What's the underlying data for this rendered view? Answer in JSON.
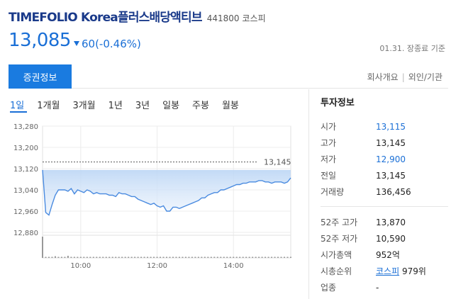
{
  "header": {
    "title": "TIMEFOLIO Korea플러스배당액티브",
    "code": "441800",
    "market": "코스피"
  },
  "quote": {
    "price": "13,085",
    "change": "60(-0.46%)",
    "status": "01.31. 장종료 기준"
  },
  "tabs": {
    "active": "증권정보",
    "links": [
      "회사개요",
      "외인/기관"
    ]
  },
  "periods": [
    "1일",
    "1개월",
    "3개월",
    "1년",
    "3년",
    "일봉",
    "주봉",
    "월봉"
  ],
  "chart_data": {
    "type": "area",
    "y_ticks": [
      "13,280",
      "13,200",
      "13,120",
      "13,040",
      "12,960",
      "12,880"
    ],
    "x_ticks": [
      "10:00",
      "12:00",
      "14:00"
    ],
    "ylim": [
      12880,
      13280
    ],
    "high_label": "13,145",
    "high_value": 13145,
    "x": [
      "09:00",
      "09:05",
      "09:10",
      "09:15",
      "09:20",
      "09:25",
      "09:30",
      "09:35",
      "09:40",
      "09:45",
      "09:50",
      "09:55",
      "10:00",
      "10:05",
      "10:10",
      "10:15",
      "10:20",
      "10:25",
      "10:30",
      "10:35",
      "10:40",
      "10:45",
      "10:50",
      "10:55",
      "11:00",
      "11:05",
      "11:10",
      "11:15",
      "11:20",
      "11:25",
      "11:30",
      "11:35",
      "11:40",
      "11:45",
      "11:50",
      "11:55",
      "12:00",
      "12:05",
      "12:10",
      "12:15",
      "12:20",
      "12:25",
      "12:30",
      "12:35",
      "12:40",
      "12:45",
      "12:50",
      "12:55",
      "13:00",
      "13:05",
      "13:10",
      "13:15",
      "13:20",
      "13:25",
      "13:30",
      "13:35",
      "13:40",
      "13:45",
      "13:50",
      "13:55",
      "14:00",
      "14:05",
      "14:10",
      "14:15",
      "14:20",
      "14:25",
      "14:30",
      "14:35",
      "14:40",
      "14:45",
      "14:50",
      "14:55",
      "15:00",
      "15:05",
      "15:10",
      "15:15",
      "15:20",
      "15:25",
      "15:30"
    ],
    "values": [
      13115,
      12955,
      12945,
      12985,
      13020,
      13040,
      13040,
      13040,
      13035,
      13045,
      13025,
      13040,
      13035,
      13030,
      13040,
      13035,
      13025,
      13030,
      13025,
      13025,
      13025,
      13020,
      13020,
      13015,
      13030,
      13025,
      13025,
      13020,
      13015,
      13015,
      13005,
      13000,
      12995,
      12990,
      12985,
      12990,
      12980,
      12975,
      12980,
      12960,
      12960,
      12975,
      12975,
      12970,
      12975,
      12980,
      12985,
      12990,
      12995,
      13000,
      13010,
      13010,
      13020,
      13025,
      13030,
      13030,
      13040,
      13040,
      13045,
      13050,
      13055,
      13060,
      13060,
      13065,
      13065,
      13070,
      13070,
      13070,
      13075,
      13075,
      13070,
      13070,
      13065,
      13070,
      13070,
      13070,
      13065,
      13070,
      13085
    ],
    "volume": [
      1.0,
      0.05,
      0.05,
      0.05,
      0.08,
      0.05,
      0.05,
      0.05,
      0.1,
      0.05,
      0.05,
      0.05,
      0.05,
      0.05,
      0.05,
      0.05,
      0.05,
      0.05,
      0.05,
      0.05,
      0.05,
      0.05,
      0.05,
      0.05,
      0.05,
      0.05,
      0.05,
      0.05,
      0.05,
      0.05,
      0.05,
      0.05,
      0.05,
      0.05,
      0.05,
      0.05,
      0.05,
      0.05,
      0.05,
      0.05,
      0.05,
      0.05,
      0.05,
      0.05,
      0.05,
      0.05,
      0.05,
      0.05,
      0.05,
      0.05,
      0.05,
      0.05,
      0.05,
      0.05,
      0.05,
      0.05,
      0.05,
      0.05,
      0.05,
      0.05,
      0.05,
      0.05,
      0.05,
      0.05,
      0.05,
      0.05,
      0.05,
      0.05,
      0.05,
      0.05,
      0.05,
      0.05,
      0.05,
      0.05,
      0.05,
      0.05,
      0.05,
      0.05,
      0.05
    ]
  },
  "info": {
    "title": "투자정보",
    "rows1": [
      {
        "k": "시가",
        "v": "13,115",
        "color": "blue"
      },
      {
        "k": "고가",
        "v": "13,145",
        "color": ""
      },
      {
        "k": "저가",
        "v": "12,900",
        "color": "blue"
      },
      {
        "k": "전일",
        "v": "13,145",
        "color": ""
      },
      {
        "k": "거래량",
        "v": "136,456",
        "color": ""
      }
    ],
    "rows2": [
      {
        "k": "52주 고가",
        "v": "13,870"
      },
      {
        "k": "52주 저가",
        "v": "10,590"
      },
      {
        "k": "시가총액",
        "v": "952억"
      }
    ],
    "rank": {
      "k": "시총순위",
      "link": "코스피",
      "v": "979위"
    },
    "sector": {
      "k": "업종",
      "v": "-"
    }
  },
  "colors": {
    "accent": "#1a6fd6",
    "tab_bg": "#1a7be0",
    "title": "#1a3a8a"
  }
}
